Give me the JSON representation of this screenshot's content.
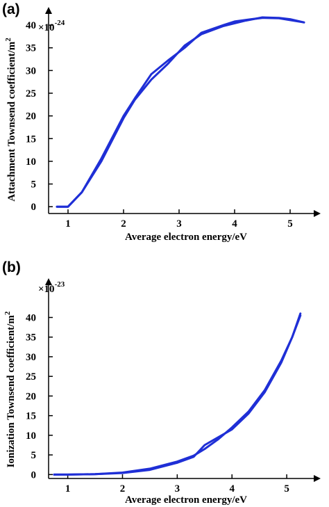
{
  "chart_data": [
    {
      "type": "line",
      "panel": "(a)",
      "xlabel": "Average electron energy/eV",
      "ylabel": "Attachment Townsend coefficient/m",
      "ylabel_sup": "2",
      "multiplier_base": "×10",
      "multiplier_exp": "-24",
      "x_ticks": [
        1,
        2,
        3,
        4,
        5
      ],
      "y_ticks": [
        0,
        5,
        10,
        15,
        20,
        25,
        30,
        35,
        40
      ],
      "xlim": [
        0.65,
        5.55
      ],
      "ylim": [
        -1.5,
        44
      ],
      "line_color": "#1f2fd6",
      "series": [
        {
          "x": [
            0.8,
            1.0,
            1.25,
            1.6,
            2.0,
            2.2,
            2.5,
            2.8,
            3.1,
            3.4,
            3.8,
            4.2,
            4.5,
            4.8,
            5.0,
            5.25
          ],
          "y": [
            0.0,
            0.0,
            3.2,
            10.0,
            19.5,
            23.5,
            28.0,
            31.5,
            35.5,
            38.0,
            39.8,
            41.0,
            41.7,
            41.6,
            41.3,
            40.6
          ]
        },
        {
          "x": [
            0.8,
            1.0,
            1.25,
            1.6,
            2.0,
            2.2,
            2.5,
            2.8,
            3.1,
            3.4,
            3.8,
            4.0,
            4.3,
            4.5,
            4.8,
            5.0,
            5.25
          ],
          "y": [
            0.0,
            0.0,
            3.2,
            10.6,
            20.0,
            23.8,
            29.2,
            32.2,
            35.0,
            38.3,
            40.0,
            40.8,
            41.3,
            41.6,
            41.5,
            41.1,
            40.6
          ]
        }
      ]
    },
    {
      "type": "line",
      "panel": "(b)",
      "xlabel": "Average electron energy/eV",
      "ylabel": "Ionization Townsend coefficient/m",
      "ylabel_sup": "2",
      "multiplier_base": "×10",
      "multiplier_exp": "-23",
      "x_ticks": [
        1,
        2,
        3,
        4,
        5
      ],
      "y_ticks": [
        0,
        5,
        10,
        15,
        20,
        25,
        30,
        35,
        40
      ],
      "xlim": [
        0.65,
        5.62
      ],
      "ylim": [
        -1,
        50
      ],
      "line_color": "#1f2fd6",
      "series": [
        {
          "x": [
            0.75,
            1.0,
            1.5,
            2.0,
            2.5,
            3.0,
            3.3,
            3.5,
            3.75,
            4.0,
            4.3,
            4.6,
            4.9,
            5.1,
            5.25
          ],
          "y": [
            0.0,
            0.0,
            0.1,
            0.5,
            1.5,
            3.3,
            4.8,
            6.5,
            9.0,
            12.0,
            16.0,
            21.5,
            29.0,
            35.0,
            40.5
          ]
        },
        {
          "x": [
            0.75,
            1.0,
            1.5,
            2.0,
            2.5,
            3.0,
            3.3,
            3.5,
            4.0,
            4.3,
            4.6,
            4.9,
            5.1,
            5.25
          ],
          "y": [
            0.0,
            0.0,
            0.1,
            0.4,
            1.2,
            3.0,
            4.5,
            7.5,
            11.5,
            15.5,
            21.0,
            28.5,
            35.0,
            41.0
          ]
        }
      ]
    }
  ]
}
